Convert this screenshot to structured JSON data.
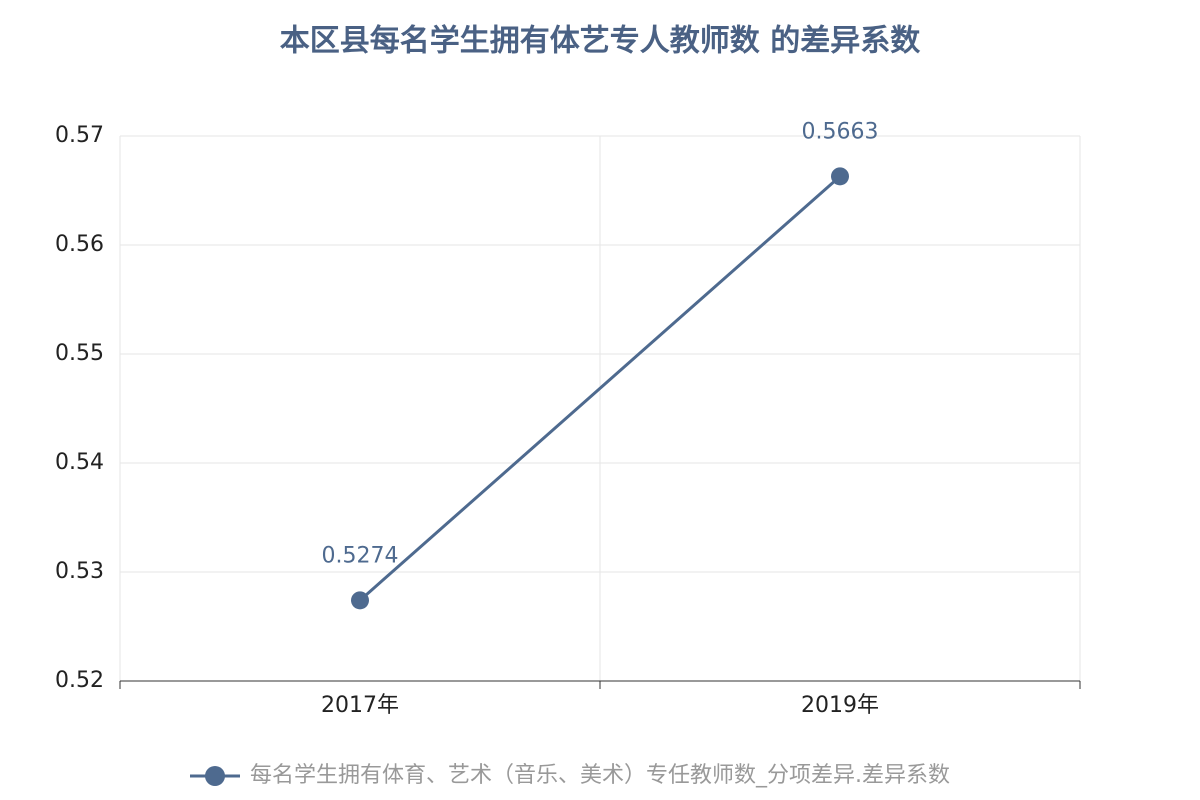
{
  "chart_data": {
    "type": "line",
    "title": "本区县每名学生拥有体艺专人教师数 的差异系数",
    "categories": [
      "2017年",
      "2019年"
    ],
    "series": [
      {
        "name": "每名学生拥有体育、艺术（音乐、美术）专任教师数_分项差异.差异系数",
        "color": "#4e6a8f",
        "values": [
          0.5274,
          0.5663
        ]
      }
    ],
    "ylim": [
      0.52,
      0.57
    ],
    "yticks": [
      0.52,
      0.53,
      0.54,
      0.55,
      0.56,
      0.57
    ],
    "grid": true,
    "legend": "bottom"
  }
}
